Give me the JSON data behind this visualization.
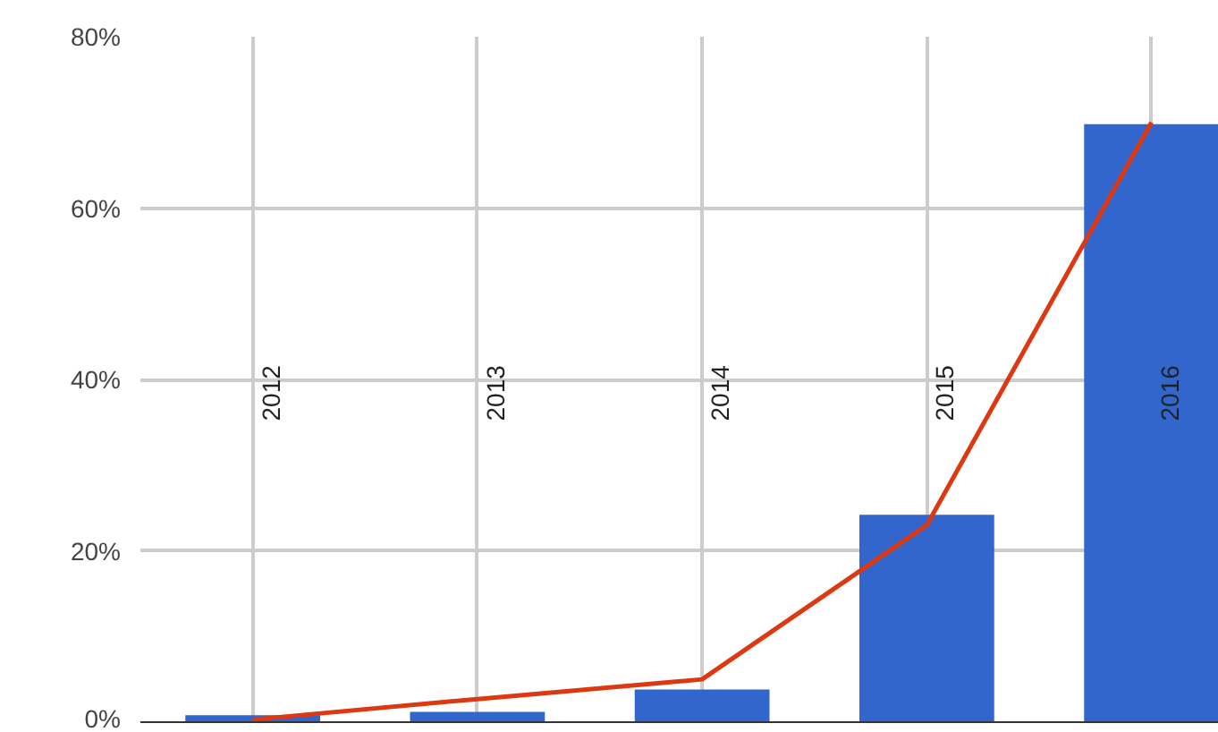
{
  "chart_data": {
    "type": "bar",
    "categories": [
      "2012",
      "2013",
      "2014",
      "2015",
      "2016"
    ],
    "series": [
      {
        "color": "#3366cc",
        "values": [
          0.8,
          1.2,
          3.8,
          24.2,
          69.8
        ]
      },
      {
        "type": "line",
        "color": "#dc3912",
        "values": [
          0.3,
          2.7,
          5,
          23,
          70
        ]
      }
    ],
    "ylim": [
      0,
      80
    ],
    "yticks": [
      {
        "value": 0,
        "label": "0%"
      },
      {
        "value": 20,
        "label": "20%"
      },
      {
        "value": 40,
        "label": "40%"
      },
      {
        "value": 60,
        "label": "60%"
      },
      {
        "value": 80,
        "label": "80%"
      }
    ],
    "grid": true,
    "marker": "none",
    "line_style": "solid"
  }
}
